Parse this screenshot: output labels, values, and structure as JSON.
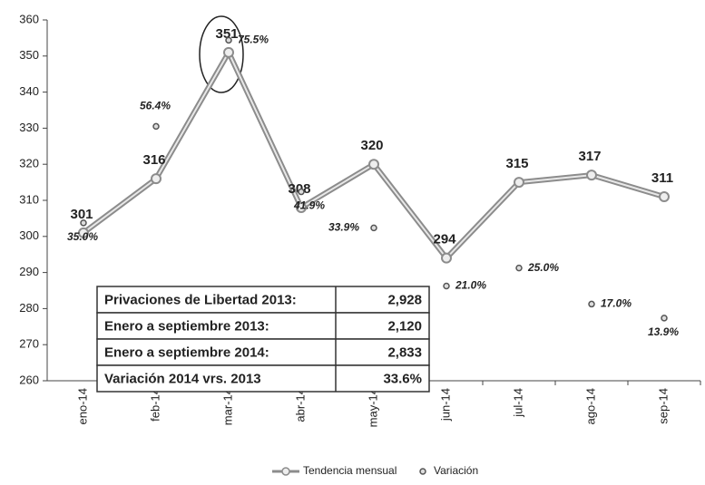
{
  "chart_data": {
    "type": "line",
    "categories": [
      "eno-14",
      "feb-14",
      "mar-14",
      "abr-14",
      "may-14",
      "jun-14",
      "jul-14",
      "ago-14",
      "sep-14"
    ],
    "series": [
      {
        "name": "Tendencia mensual",
        "color": "#8c8c8c",
        "values": [
          301,
          316,
          351,
          308,
          320,
          294,
          315,
          317,
          311
        ]
      },
      {
        "name": "Variación",
        "color": "#555555",
        "axis": "y2",
        "values": [
          35.0,
          56.4,
          75.5,
          41.9,
          33.9,
          21.0,
          25.0,
          17.0,
          13.9
        ],
        "value_labels": [
          "35.0%",
          "56.4%",
          "75.5%",
          "41.9%",
          "33.9%",
          "21.0%",
          "25.0%",
          "17.0%",
          "13.9%"
        ]
      }
    ],
    "ylim": [
      260,
      360
    ],
    "yticks": [
      260,
      270,
      280,
      290,
      300,
      310,
      320,
      330,
      340,
      350,
      360
    ],
    "y2lim": [
      0,
      80
    ],
    "legend": "bottom",
    "table": {
      "rows": [
        [
          "Privaciones de Libertad 2013:",
          "2,928"
        ],
        [
          "Enero a septiembre 2013:",
          "2,120"
        ],
        [
          "Enero a septiembre 2014:",
          "2,833"
        ],
        [
          "Variación 2014 vrs. 2013",
          "33.6%"
        ]
      ]
    }
  }
}
